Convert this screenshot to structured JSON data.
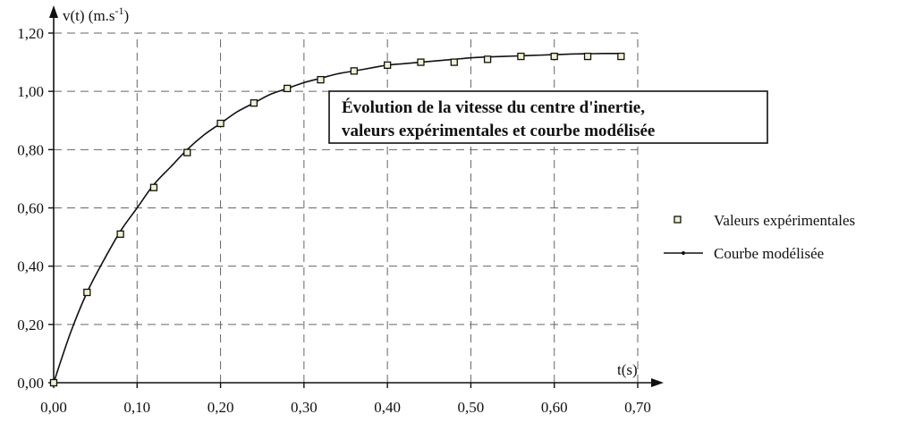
{
  "chart_data": {
    "type": "scatter",
    "title_lines": [
      "Évolution de la vitesse du centre d'inertie,",
      "valeurs expérimentales et courbe modélisée"
    ],
    "ylabel": "v(t) (m.s-1)",
    "ylabel_base": "v(t) (m.s",
    "ylabel_exp": "-1",
    "ylabel_close": ")",
    "xlabel": "t(s)",
    "xlim": [
      0,
      0.7
    ],
    "ylim": [
      0,
      1.2
    ],
    "x_ticks": [
      "0,00",
      "0,10",
      "0,20",
      "0,30",
      "0,40",
      "0,50",
      "0,60",
      "0,70"
    ],
    "y_ticks": [
      "0,00",
      "0,20",
      "0,40",
      "0,60",
      "0,80",
      "1,00",
      "1,20"
    ],
    "grid": true,
    "legend_position": "right",
    "series": [
      {
        "name": "Valeurs expérimentales",
        "kind": "points",
        "x": [
          0.0,
          0.04,
          0.08,
          0.12,
          0.16,
          0.2,
          0.24,
          0.28,
          0.32,
          0.36,
          0.4,
          0.44,
          0.48,
          0.52,
          0.56,
          0.6,
          0.64,
          0.68
        ],
        "y": [
          0.0,
          0.31,
          0.51,
          0.67,
          0.79,
          0.89,
          0.96,
          1.01,
          1.04,
          1.07,
          1.09,
          1.1,
          1.1,
          1.11,
          1.12,
          1.12,
          1.12,
          1.12
        ]
      },
      {
        "name": "Courbe modélisée",
        "kind": "line",
        "x": [
          0.0,
          0.02,
          0.04,
          0.06,
          0.08,
          0.1,
          0.12,
          0.14,
          0.16,
          0.18,
          0.2,
          0.22,
          0.24,
          0.26,
          0.28,
          0.3,
          0.32,
          0.34,
          0.36,
          0.38,
          0.4,
          0.42,
          0.44,
          0.46,
          0.48,
          0.5,
          0.52,
          0.54,
          0.56,
          0.58,
          0.6,
          0.62,
          0.64,
          0.66,
          0.68
        ],
        "y": [
          0.0,
          0.17,
          0.31,
          0.42,
          0.52,
          0.6,
          0.68,
          0.74,
          0.8,
          0.85,
          0.89,
          0.93,
          0.96,
          0.99,
          1.01,
          1.03,
          1.045,
          1.06,
          1.07,
          1.08,
          1.09,
          1.095,
          1.1,
          1.105,
          1.11,
          1.115,
          1.118,
          1.12,
          1.122,
          1.124,
          1.126,
          1.128,
          1.129,
          1.13,
          1.13
        ]
      }
    ]
  }
}
